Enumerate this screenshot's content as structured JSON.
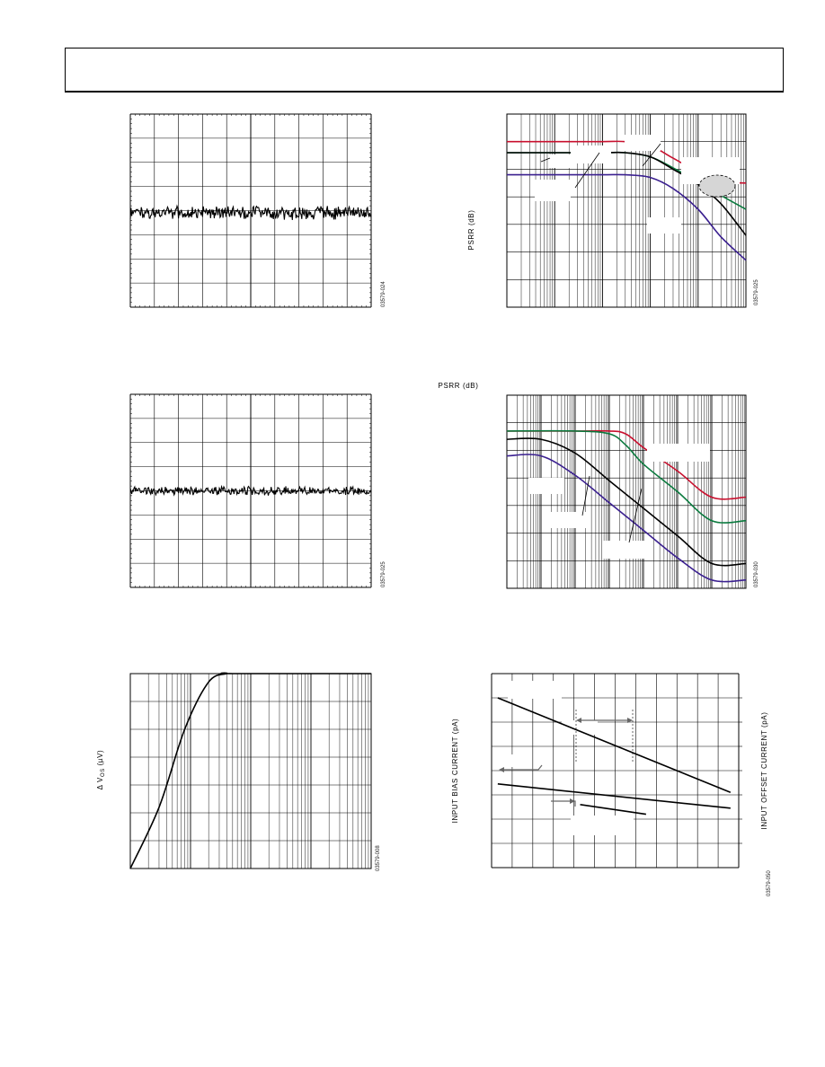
{
  "page": {
    "header_text": ""
  },
  "charts": {
    "psrr_top": {
      "ylabel": "PSRR (dB)",
      "figure_id": "03579-025"
    },
    "psrr_mid": {
      "ylabel": "PSRR (dB)",
      "figure_id": "03579-030"
    },
    "vos_curve": {
      "ylabel": "Δ V",
      "ylabel_sub": "OS",
      "ylabel_tail": " (µV)",
      "figure_id": "03579-008"
    },
    "bias_curve": {
      "ylabel_left": "INPUT BIAS CURRENT (pA)",
      "ylabel_right": "INPUT OFFSET CURRENT (pA)",
      "figure_id": "03579-050"
    },
    "noise_top": {
      "figure_id": "03579-024"
    },
    "noise_mid": {
      "figure_id": "03579-025"
    }
  },
  "chart_data": [
    {
      "id": "noise_top",
      "type": "line",
      "title": "",
      "xlabel": "",
      "ylabel": "",
      "grid": true,
      "xlim": [
        0,
        10
      ],
      "ylim": [
        0,
        8
      ],
      "series": [
        {
          "color": "#000000",
          "mean_y": 3.9,
          "noise_amplitude": 0.28
        }
      ]
    },
    {
      "id": "noise_mid",
      "type": "line",
      "title": "",
      "xlabel": "",
      "ylabel": "",
      "grid": true,
      "xlim": [
        0,
        10
      ],
      "ylim": [
        0,
        8
      ],
      "series": [
        {
          "color": "#000000",
          "mean_y": 4.0,
          "noise_amplitude": 0.18
        }
      ]
    },
    {
      "id": "psrr_top",
      "type": "line",
      "title": "",
      "xlabel": "",
      "ylabel": "PSRR (dB)",
      "xscale": "log",
      "xlim": [
        1,
        100000
      ],
      "ylim": [
        0,
        7
      ],
      "grid": true,
      "series": [
        {
          "color": "#c8102e",
          "x": [
            1,
            10,
            100,
            300,
            1000,
            3000,
            10000,
            30000,
            100000
          ],
          "y": [
            6.0,
            6.0,
            6.0,
            6.0,
            5.85,
            5.4,
            4.9,
            4.55,
            4.5
          ]
        },
        {
          "color": "#0a7a3e",
          "x": [
            1,
            10,
            100,
            300,
            1000,
            3000,
            10000,
            30000,
            100000
          ],
          "y": [
            5.6,
            5.6,
            5.6,
            5.6,
            5.45,
            5.05,
            4.55,
            4.05,
            3.55
          ]
        },
        {
          "color": "#000000",
          "x": [
            1,
            10,
            100,
            300,
            1000,
            3000,
            10000,
            30000,
            100000
          ],
          "y": [
            5.6,
            5.6,
            5.6,
            5.6,
            5.45,
            5.0,
            4.45,
            3.75,
            2.6
          ]
        },
        {
          "color": "#3a1f8f",
          "x": [
            1,
            10,
            100,
            300,
            1000,
            3000,
            10000,
            30000,
            100000
          ],
          "y": [
            4.8,
            4.8,
            4.8,
            4.8,
            4.7,
            4.3,
            3.55,
            2.55,
            1.7
          ]
        }
      ]
    },
    {
      "id": "psrr_mid",
      "type": "line",
      "title": "",
      "xlabel": "",
      "ylabel": "PSRR (dB)",
      "xscale": "log",
      "xlim": [
        1,
        10000000
      ],
      "ylim": [
        0,
        7
      ],
      "grid": true,
      "series": [
        {
          "color": "#c8102e",
          "x": [
            1,
            100,
            1000,
            3000,
            10000,
            100000,
            1000000,
            10000000
          ],
          "y": [
            5.7,
            5.7,
            5.7,
            5.6,
            5.1,
            4.25,
            3.3,
            3.3
          ]
        },
        {
          "color": "#0a7a3e",
          "x": [
            1,
            100,
            1000,
            3000,
            10000,
            100000,
            1000000,
            10000000
          ],
          "y": [
            5.7,
            5.7,
            5.6,
            5.2,
            4.5,
            3.5,
            2.45,
            2.45
          ]
        },
        {
          "color": "#000000",
          "x": [
            1,
            10,
            100,
            1000,
            10000,
            100000,
            1000000,
            10000000
          ],
          "y": [
            5.4,
            5.4,
            4.9,
            3.9,
            2.9,
            1.9,
            0.9,
            0.9
          ]
        },
        {
          "color": "#3a1f8f",
          "x": [
            1,
            10,
            100,
            1000,
            10000,
            100000,
            1000000,
            10000000
          ],
          "y": [
            4.8,
            4.8,
            4.1,
            3.1,
            2.1,
            1.1,
            0.3,
            0.3
          ]
        }
      ]
    },
    {
      "id": "vos_curve",
      "type": "line",
      "title": "",
      "xlabel": "",
      "ylabel": "Δ VOS (µV)",
      "xscale": "log",
      "xlim": [
        1,
        10000
      ],
      "ylim": [
        0,
        7
      ],
      "grid": true,
      "series": [
        {
          "color": "#000000",
          "x": [
            1,
            3,
            8,
            20,
            40,
            50,
            10000
          ],
          "y": [
            0,
            2.2,
            5.0,
            6.7,
            7.0,
            7.0,
            7.0
          ]
        }
      ]
    },
    {
      "id": "bias_curve",
      "type": "line",
      "title": "",
      "xlabel": "",
      "ylabel": "INPUT BIAS CURRENT (pA)",
      "xlim": [
        0,
        12
      ],
      "ylim": [
        0,
        8
      ],
      "grid": true,
      "series": [
        {
          "color": "#000000",
          "x": [
            0.3,
            11.6
          ],
          "y": [
            7.0,
            3.1
          ]
        },
        {
          "color": "#000000",
          "x": [
            0.3,
            11.6
          ],
          "y": [
            3.45,
            2.45
          ]
        },
        {
          "color": "#000000",
          "x": [
            4.3,
            7.5
          ],
          "y": [
            2.6,
            2.2
          ]
        }
      ]
    }
  ]
}
